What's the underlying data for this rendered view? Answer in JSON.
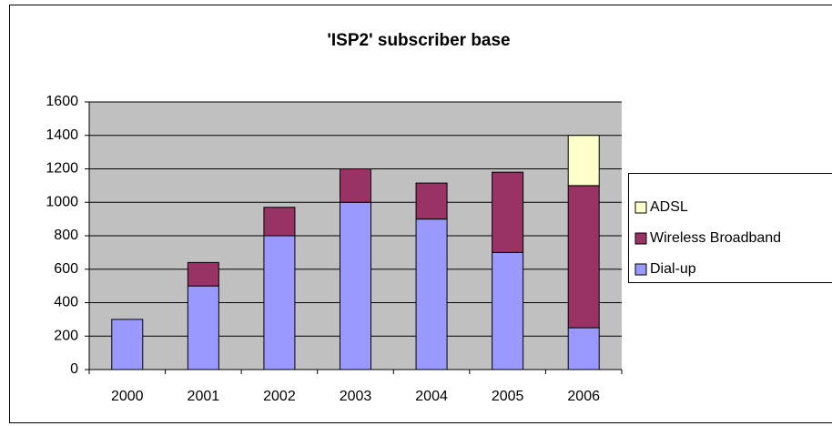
{
  "chart_data": {
    "type": "stacked_bar",
    "title": "'ISP2' subscriber base",
    "categories": [
      "2000",
      "2001",
      "2002",
      "2003",
      "2004",
      "2005",
      "2006"
    ],
    "series": [
      {
        "name": "Dial-up",
        "color": "#9999ff",
        "values": [
          300,
          500,
          800,
          1000,
          900,
          700,
          250
        ]
      },
      {
        "name": "Wireless Broadband",
        "color": "#993366",
        "values": [
          0,
          140,
          170,
          200,
          215,
          480,
          850
        ]
      },
      {
        "name": "ADSL",
        "color": "#ffffcc",
        "values": [
          0,
          0,
          0,
          0,
          0,
          0,
          300
        ]
      }
    ],
    "ylim": [
      0,
      1600
    ],
    "yticks": [
      0,
      200,
      400,
      600,
      800,
      1000,
      1200,
      1400,
      1600
    ],
    "grid": true,
    "legend": "right"
  }
}
